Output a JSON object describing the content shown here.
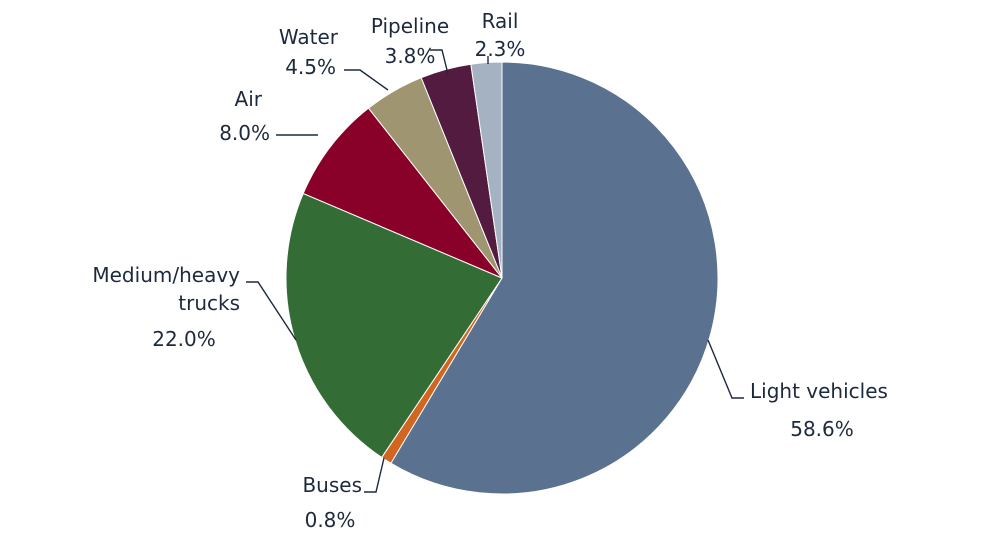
{
  "chart_data": {
    "type": "pie",
    "title": "",
    "slices": [
      {
        "name": "Light vehicles",
        "label_lines": [
          "Light vehicles"
        ],
        "pct_text": "58.6%",
        "value": 58.6,
        "color": "#5a718f"
      },
      {
        "name": "Buses",
        "label_lines": [
          "Buses"
        ],
        "pct_text": "0.8%",
        "value": 0.8,
        "color": "#d2651f"
      },
      {
        "name": "Medium/heavy trucks",
        "label_lines": [
          "Medium/heavy",
          "trucks"
        ],
        "pct_text": "22.0%",
        "value": 22.0,
        "color": "#346c35"
      },
      {
        "name": "Air",
        "label_lines": [
          "Air"
        ],
        "pct_text": "8.0%",
        "value": 8.0,
        "color": "#890029"
      },
      {
        "name": "Water",
        "label_lines": [
          "Water"
        ],
        "pct_text": "4.5%",
        "value": 4.5,
        "color": "#a09571"
      },
      {
        "name": "Pipeline",
        "label_lines": [
          "Pipeline"
        ],
        "pct_text": "3.8%",
        "value": 3.8,
        "color": "#521b3f"
      },
      {
        "name": "Rail",
        "label_lines": [
          "Rail"
        ],
        "pct_text": "2.3%",
        "value": 2.3,
        "color": "#a5b2c2"
      }
    ],
    "start_angle": "12 o'clock",
    "direction": "clockwise",
    "legend": "none (direct labels)"
  }
}
